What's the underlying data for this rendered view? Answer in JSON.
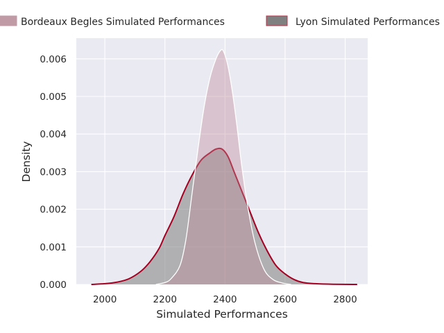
{
  "chart_data": {
    "type": "area",
    "title": "",
    "xlabel": "Simulated Performances",
    "ylabel": "Density",
    "xlim": [
      1905,
      2875
    ],
    "ylim": [
      0,
      0.00655
    ],
    "xticks": [
      2000,
      2200,
      2400,
      2600,
      2800
    ],
    "xtick_labels": [
      "2000",
      "2200",
      "2400",
      "2600",
      "2800"
    ],
    "yticks": [
      0,
      0.001,
      0.002,
      0.003,
      0.004,
      0.005,
      0.006
    ],
    "ytick_labels": [
      "0.000",
      "0.001",
      "0.002",
      "0.003",
      "0.004",
      "0.005",
      "0.006"
    ],
    "grid": true,
    "legend_position": "top",
    "series": [
      {
        "name": "Lyon Simulated Performances",
        "fill_color": "#808080",
        "line_color": "#a50021",
        "fill_opacity": 0.55,
        "x": [
          1955,
          2000,
          2040,
          2080,
          2120,
          2150,
          2180,
          2200,
          2230,
          2260,
          2290,
          2320,
          2350,
          2370,
          2390,
          2410,
          2430,
          2450,
          2480,
          2510,
          2540,
          2570,
          2600,
          2630,
          2660,
          2700,
          2760,
          2840
        ],
        "y": [
          0.0,
          2e-05,
          6e-05,
          0.00015,
          0.00035,
          0.0006,
          0.00095,
          0.0013,
          0.0018,
          0.0024,
          0.0029,
          0.0033,
          0.0035,
          0.0036,
          0.0036,
          0.0034,
          0.003,
          0.0026,
          0.002,
          0.0014,
          0.0009,
          0.0005,
          0.00028,
          0.00013,
          5e-05,
          2e-05,
          5e-06,
          0.0
        ]
      },
      {
        "name": "Bordeaux Begles Simulated Performances",
        "fill_color": "#c08a98",
        "line_color": "#ffffff",
        "fill_opacity": 0.4,
        "x": [
          2170,
          2200,
          2220,
          2250,
          2270,
          2290,
          2310,
          2330,
          2350,
          2370,
          2385,
          2395,
          2410,
          2425,
          2440,
          2455,
          2475,
          2500,
          2530,
          2560,
          2590,
          2620
        ],
        "y": [
          0.0,
          5e-05,
          0.00015,
          0.0005,
          0.0012,
          0.0024,
          0.0036,
          0.0047,
          0.0055,
          0.006,
          0.00622,
          0.0062,
          0.0058,
          0.0051,
          0.0042,
          0.0032,
          0.0021,
          0.0011,
          0.0004,
          0.00013,
          4e-05,
          0.0
        ]
      }
    ]
  }
}
